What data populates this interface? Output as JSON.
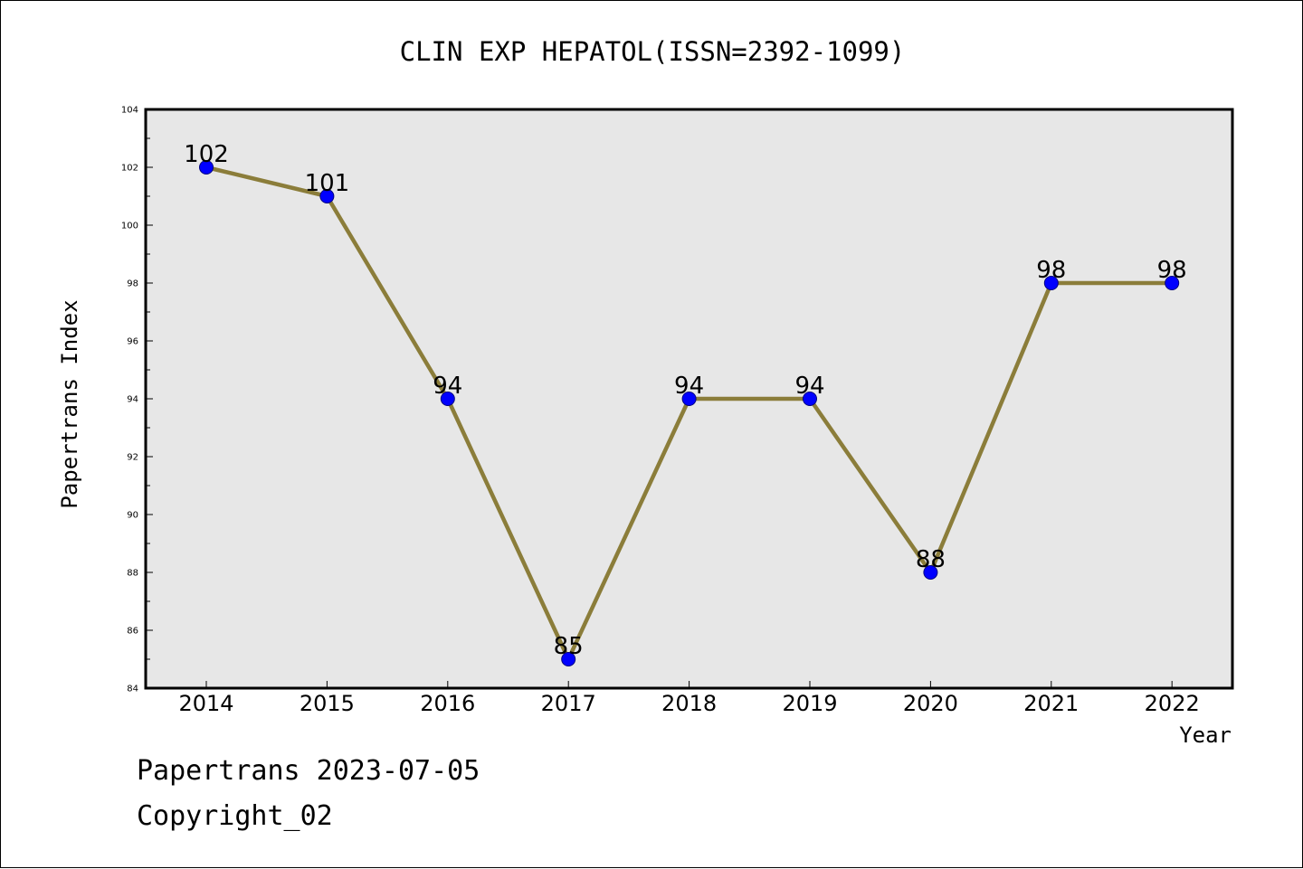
{
  "chart_data": {
    "type": "line",
    "title": "CLIN EXP HEPATOL(ISSN=2392-1099)",
    "xlabel": "Year",
    "ylabel": "Papertrans Index",
    "categories": [
      "2014",
      "2015",
      "2016",
      "2017",
      "2018",
      "2019",
      "2020",
      "2021",
      "2022"
    ],
    "series": [
      {
        "values": [
          102,
          101,
          94,
          85,
          94,
          94,
          88,
          98,
          98
        ]
      }
    ],
    "data_labels": [
      "102",
      "101",
      "94",
      "85",
      "94",
      "94",
      "88",
      "98",
      "98"
    ],
    "ylim": [
      84,
      104
    ],
    "yticks": [
      84,
      86,
      88,
      90,
      92,
      94,
      96,
      98,
      100,
      102,
      104
    ],
    "ytick_labels": [
      "84",
      "86",
      "88",
      "90",
      "92",
      "94",
      "96",
      "98",
      "100",
      "102",
      "104"
    ],
    "grid": false,
    "legend": "none",
    "colors": {
      "line": "#8B7D3A",
      "marker": "#0000FF",
      "marker_edge": "#000080",
      "plot_background": "#E7E7E7",
      "axis": "#000000"
    }
  },
  "footer": {
    "date_text": "Papertrans 2023-07-05",
    "copyright_text": "Copyright_02"
  }
}
